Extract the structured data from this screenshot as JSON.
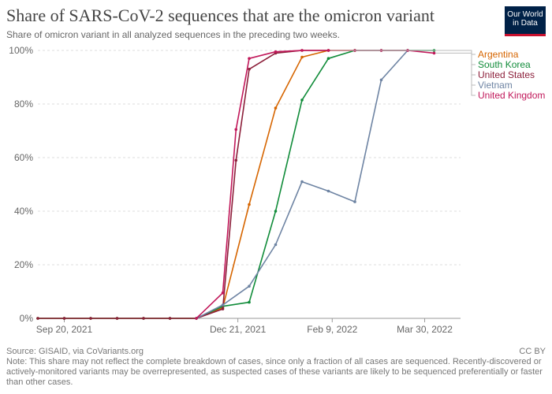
{
  "header": {
    "title": "Share of SARS-CoV-2 sequences that are the omicron variant",
    "subtitle": "Share of omicron variant in all analyzed sequences in the preceding two weeks.",
    "logo_line1": "Our World",
    "logo_line2": "in Data"
  },
  "footer": {
    "source": "Source: GISAID, via CoVariants.org",
    "license": "CC BY",
    "note": "Note: This share may not reflect the complete breakdown of cases, since only a fraction of all cases are sequenced. Recently-discovered or actively-monitored variants may be overrepresented, as suspected cases of these variants are likely to be sequenced preferentially or faster than other cases."
  },
  "colors": {
    "Argentina": "#d66500",
    "South Korea": "#118c3a",
    "United States": "#8c1f3a",
    "Vietnam": "#6e84a3",
    "United Kingdom": "#c1185a"
  },
  "chart_data": {
    "type": "line",
    "title": "Share of SARS-CoV-2 sequences that are the omicron variant",
    "subtitle": "Share of omicron variant in all analyzed sequences in the preceding two weeks.",
    "xlabel": "",
    "ylabel": "",
    "x": [
      "2021-09-06",
      "2021-09-20",
      "2021-10-04",
      "2021-10-18",
      "2021-11-01",
      "2021-11-15",
      "2021-11-29",
      "2021-12-13",
      "2021-12-27",
      "2022-01-10",
      "2022-01-24",
      "2022-02-07",
      "2022-02-21",
      "2022-03-07",
      "2022-03-21",
      "2022-04-04",
      "2022-04-18"
    ],
    "x_ticks": [
      {
        "date": "2021-09-20",
        "label": "Sep 20, 2021"
      },
      {
        "date": "2021-12-21",
        "label": "Dec 21, 2021"
      },
      {
        "date": "2022-02-09",
        "label": "Feb 9, 2022"
      },
      {
        "date": "2022-03-30",
        "label": "Mar 30, 2022"
      }
    ],
    "y_ticks": [
      0,
      20,
      40,
      60,
      80,
      100
    ],
    "y_tick_labels": [
      "0%",
      "20%",
      "40%",
      "60%",
      "80%",
      "100%"
    ],
    "ylim": [
      0,
      100
    ],
    "grid": "horizontal",
    "legend": "right",
    "series": [
      {
        "name": "Argentina",
        "points": [
          [
            "2021-09-06",
            0
          ],
          [
            "2021-09-20",
            0
          ],
          [
            "2021-10-04",
            0
          ],
          [
            "2021-10-18",
            0
          ],
          [
            "2021-11-01",
            0
          ],
          [
            "2021-11-15",
            0
          ],
          [
            "2021-11-29",
            0
          ],
          [
            "2021-12-13",
            4
          ],
          [
            "2021-12-27",
            42.5
          ],
          [
            "2022-01-10",
            78.5
          ],
          [
            "2022-01-24",
            97.5
          ],
          [
            "2022-02-07",
            100
          ],
          [
            "2022-02-21",
            100
          ]
        ]
      },
      {
        "name": "South Korea",
        "points": [
          [
            "2021-09-06",
            0
          ],
          [
            "2021-09-20",
            0
          ],
          [
            "2021-10-04",
            0
          ],
          [
            "2021-10-18",
            0
          ],
          [
            "2021-11-01",
            0
          ],
          [
            "2021-11-15",
            0
          ],
          [
            "2021-11-29",
            0
          ],
          [
            "2021-12-13",
            4.5
          ],
          [
            "2021-12-27",
            6
          ],
          [
            "2022-01-10",
            40
          ],
          [
            "2022-01-24",
            81.5
          ],
          [
            "2022-02-07",
            97
          ],
          [
            "2022-02-21",
            100
          ],
          [
            "2022-03-07",
            100
          ],
          [
            "2022-03-21",
            100
          ],
          [
            "2022-04-04",
            100
          ]
        ]
      },
      {
        "name": "United States",
        "points": [
          [
            "2021-09-06",
            0
          ],
          [
            "2021-09-20",
            0
          ],
          [
            "2021-10-04",
            0
          ],
          [
            "2021-10-18",
            0
          ],
          [
            "2021-11-01",
            0
          ],
          [
            "2021-11-15",
            0
          ],
          [
            "2021-11-29",
            0
          ],
          [
            "2021-12-13",
            3.5
          ],
          [
            "2021-12-20",
            59
          ],
          [
            "2021-12-27",
            93
          ],
          [
            "2022-01-10",
            99
          ],
          [
            "2022-01-24",
            100
          ],
          [
            "2022-02-07",
            100
          ]
        ]
      },
      {
        "name": "Vietnam",
        "points": [
          [
            "2021-11-29",
            0
          ],
          [
            "2021-12-13",
            5
          ],
          [
            "2021-12-27",
            12
          ],
          [
            "2022-01-10",
            27.5
          ],
          [
            "2022-01-24",
            51
          ],
          [
            "2022-02-07",
            47.5
          ],
          [
            "2022-02-21",
            43.5
          ],
          [
            "2022-03-07",
            89
          ],
          [
            "2022-03-21",
            100
          ]
        ]
      },
      {
        "name": "United Kingdom",
        "points": [
          [
            "2021-11-29",
            0
          ],
          [
            "2021-12-13",
            9.5
          ],
          [
            "2021-12-20",
            70.5
          ],
          [
            "2021-12-27",
            97
          ],
          [
            "2022-01-10",
            99.5
          ],
          [
            "2022-01-24",
            100
          ],
          [
            "2022-02-07",
            100
          ],
          [
            "2022-02-21",
            100
          ],
          [
            "2022-03-07",
            100
          ],
          [
            "2022-03-21",
            100
          ],
          [
            "2022-04-04",
            99
          ]
        ]
      }
    ]
  }
}
